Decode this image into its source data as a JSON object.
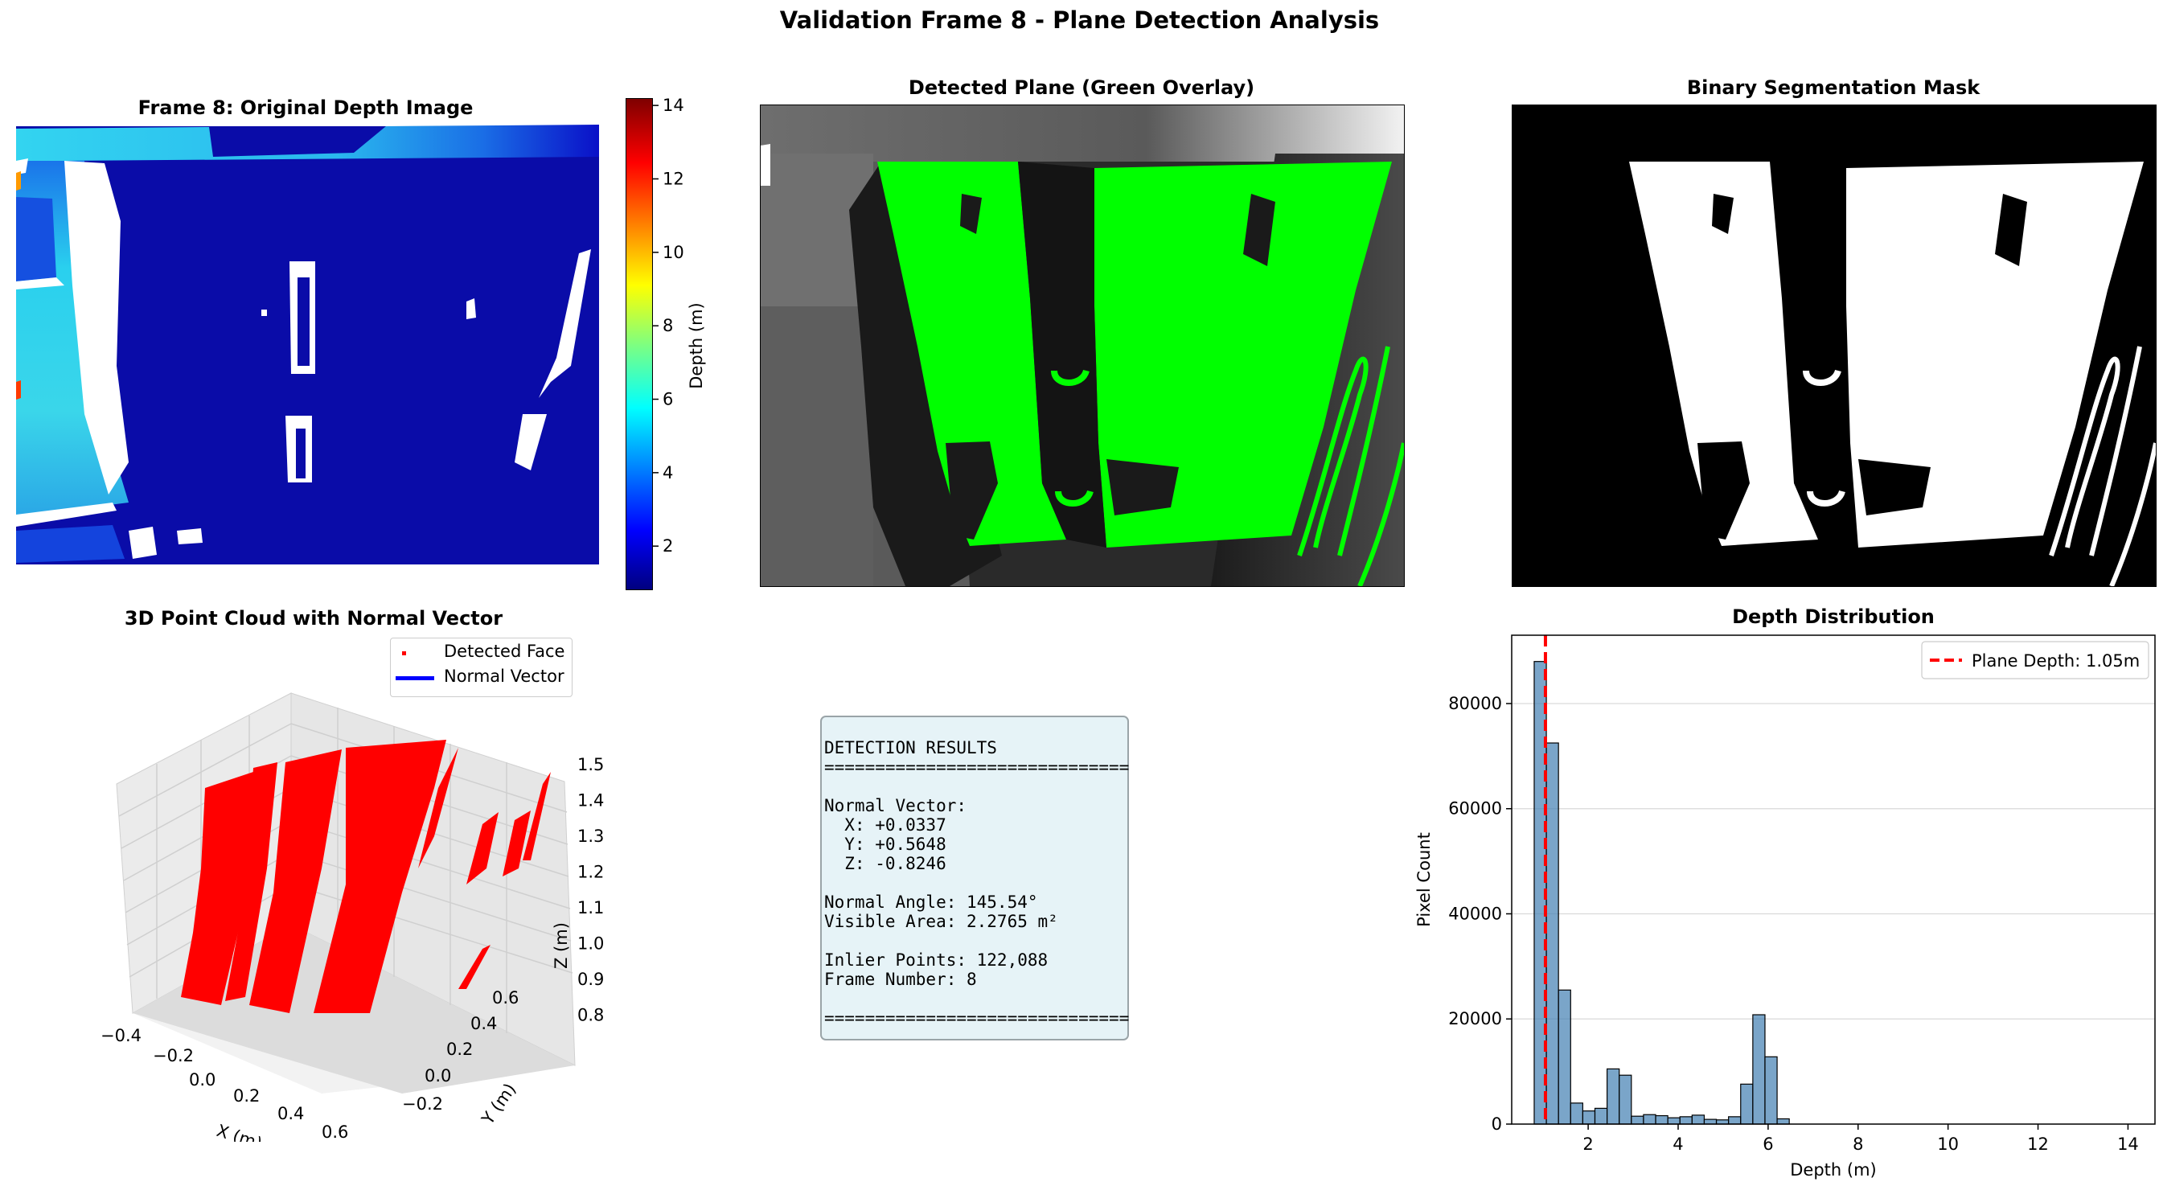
{
  "figure": {
    "title": "Validation Frame 8 - Plane Detection Analysis"
  },
  "panels": {
    "depth_image": {
      "title": "Frame 8: Original Depth Image",
      "colorbar_label": "Depth (m)",
      "colorbar_ticks": [
        "2",
        "4",
        "6",
        "8",
        "10",
        "12",
        "14"
      ],
      "colormap": "jet"
    },
    "overlay": {
      "title": "Detected Plane (Green Overlay)",
      "overlay_color": "#00ff00"
    },
    "mask": {
      "title": "Binary Segmentation Mask"
    },
    "point_cloud": {
      "title": "3D Point Cloud with Normal Vector",
      "legend": [
        "Detected Face",
        "Normal Vector"
      ],
      "x_label": "X (m)",
      "y_label": "Y (m)",
      "z_label": "Z (m)",
      "x_ticks": [
        "−0.4",
        "−0.2",
        "0.0",
        "0.2",
        "0.4",
        "0.6"
      ],
      "y_ticks": [
        "−0.2",
        "0.0",
        "0.2",
        "0.4",
        "0.6"
      ],
      "z_ticks": [
        "0.8",
        "0.9",
        "1.0",
        "1.1",
        "1.2",
        "1.3",
        "1.4",
        "1.5"
      ],
      "point_color": "#ff0000",
      "normal_color": "#0000ff"
    },
    "results": {
      "lines": [
        "DETECTION RESULTS",
        "==============================",
        "",
        "Normal Vector:",
        "  X: +0.0337",
        "  Y: +0.5648",
        "  Z: -0.8246",
        "",
        "Normal Angle: 145.54°",
        "Visible Area: 2.2765 m²",
        "",
        "Inlier Points: 122,088",
        "Frame Number: 8",
        "",
        "=============================="
      ]
    }
  },
  "chart_data": {
    "type": "bar",
    "title": "Depth Distribution",
    "xlabel": "Depth (m)",
    "ylabel": "Pixel Count",
    "xlim": [
      0.3,
      14.6
    ],
    "ylim": [
      0,
      93000
    ],
    "x_ticks": [
      2,
      4,
      6,
      8,
      10,
      12,
      14
    ],
    "y_ticks": [
      0,
      20000,
      40000,
      60000,
      80000
    ],
    "grid": "y",
    "bar_color": "#4682b4",
    "bin_edges": [
      0.8,
      1.07,
      1.34,
      1.61,
      1.88,
      2.15,
      2.42,
      2.69,
      2.96,
      3.23,
      3.5,
      3.77,
      4.04,
      4.31,
      4.58,
      4.85,
      5.12,
      5.39,
      5.66,
      5.93,
      6.2,
      6.47
    ],
    "values": [
      88000,
      72500,
      25500,
      4000,
      2500,
      3000,
      10500,
      9300,
      1500,
      1800,
      1600,
      1200,
      1400,
      1700,
      900,
      800,
      1400,
      7600,
      20800,
      12800,
      1000
    ],
    "reference_line": {
      "x": 1.05,
      "label": "Plane Depth: 1.05m",
      "color": "#ff0000"
    }
  }
}
